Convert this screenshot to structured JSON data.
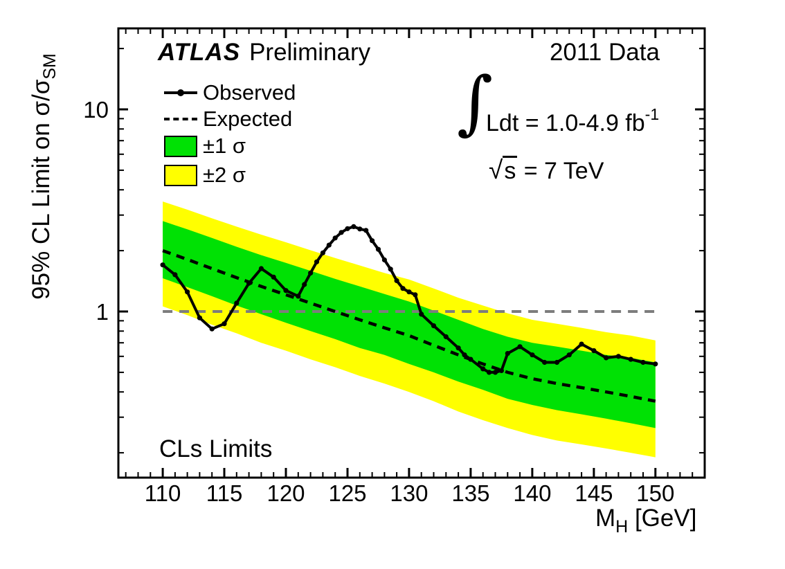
{
  "header": {
    "atlas": "ATLAS",
    "preliminary": "Preliminary",
    "right": "2011 Data"
  },
  "legend": {
    "observed": "Observed",
    "expected": "Expected",
    "one_sigma": "±1 σ",
    "two_sigma": "±2 σ"
  },
  "info": {
    "integral_symbol": "∫",
    "lumi_text": "Ldt = 1.0-4.9 fb",
    "lumi_exp": "-1",
    "sqrt_symbol": "√",
    "sqrt_arg": "s",
    "energy_text": " = 7 TeV"
  },
  "corner_label": "CLs Limits",
  "x_axis_title": {
    "main": "M",
    "sub": "H",
    "unit": " [GeV]"
  },
  "y_axis_title": {
    "main": "95% CL Limit on σ/σ",
    "sub": "SM"
  },
  "chart_data": {
    "type": "line",
    "title": "ATLAS Preliminary",
    "subtitle_right": "2011 Data",
    "annotations": [
      "∫ Ldt = 1.0-4.9 fb⁻¹",
      "√s = 7 TeV",
      "CLs Limits"
    ],
    "xlabel": "M_H [GeV]",
    "ylabel": "95% CL Limit on σ/σ_SM",
    "xlim": [
      106.4,
      154
    ],
    "ylog": true,
    "ylim": [
      0.151,
      25.2
    ],
    "legend_position": "top-left",
    "grid": false,
    "x_axis": {
      "major": [
        110,
        115,
        120,
        125,
        130,
        135,
        140,
        145,
        150
      ],
      "labels": [
        "110",
        "115",
        "120",
        "125",
        "130",
        "135",
        "140",
        "145",
        "150"
      ],
      "minor_range": [
        107,
        153
      ],
      "minor_step": 1
    },
    "y_axis": {
      "major": [
        1,
        10
      ],
      "labels": [
        "1",
        "10"
      ],
      "minor": [
        0.2,
        0.3,
        0.4,
        0.5,
        0.6,
        0.7,
        0.8,
        0.9,
        2,
        3,
        4,
        5,
        6,
        7,
        8,
        9,
        20
      ]
    },
    "colors": {
      "observed": "#000000",
      "expected": "#000000",
      "one_sigma": "#00e104",
      "two_sigma": "#ffff00",
      "reference": "#7d7d7d",
      "frame": "#000000"
    },
    "reference_line": {
      "y": 1,
      "x_range": [
        110,
        150
      ]
    },
    "observed": {
      "name": "Observed",
      "x": [
        110,
        111,
        112,
        113,
        114,
        115,
        116,
        117,
        118,
        119,
        120,
        121,
        121.5,
        122,
        122.5,
        123,
        123.5,
        124,
        124.5,
        125,
        125.5,
        126,
        126.5,
        127,
        127.5,
        128,
        128.5,
        129,
        129.5,
        130,
        130.5,
        131,
        132,
        133,
        134,
        134.5,
        135,
        136,
        136.5,
        137,
        137.5,
        138,
        139,
        140,
        141,
        142,
        143,
        144,
        145,
        146,
        147,
        148,
        149,
        150
      ],
      "y": [
        1.7,
        1.52,
        1.25,
        0.93,
        0.82,
        0.87,
        1.1,
        1.38,
        1.63,
        1.48,
        1.27,
        1.19,
        1.36,
        1.55,
        1.76,
        1.95,
        2.13,
        2.31,
        2.46,
        2.57,
        2.63,
        2.56,
        2.52,
        2.24,
        2.03,
        1.8,
        1.62,
        1.42,
        1.3,
        1.25,
        1.21,
        0.97,
        0.85,
        0.75,
        0.66,
        0.61,
        0.58,
        0.52,
        0.5,
        0.5,
        0.51,
        0.62,
        0.67,
        0.61,
        0.56,
        0.56,
        0.61,
        0.69,
        0.64,
        0.59,
        0.6,
        0.58,
        0.56,
        0.55
      ]
    },
    "expected": {
      "name": "Expected",
      "x": [
        110,
        112,
        114,
        116,
        118,
        120,
        122,
        124,
        126,
        128,
        130,
        132,
        134,
        136,
        138,
        140,
        142,
        144,
        146,
        148,
        150
      ],
      "y": [
        2.0,
        1.81,
        1.63,
        1.47,
        1.33,
        1.21,
        1.1,
        1.0,
        0.91,
        0.83,
        0.76,
        0.68,
        0.61,
        0.55,
        0.5,
        0.465,
        0.44,
        0.42,
        0.4,
        0.38,
        0.36
      ]
    },
    "bands": {
      "one_sigma": {
        "name": "±1 σ",
        "hi": [
          2.8,
          2.55,
          2.31,
          2.09,
          1.9,
          1.74,
          1.59,
          1.45,
          1.33,
          1.22,
          1.12,
          1.01,
          0.91,
          0.82,
          0.75,
          0.7,
          0.67,
          0.64,
          0.61,
          0.59,
          0.56
        ],
        "lo": [
          1.46,
          1.32,
          1.19,
          1.07,
          0.97,
          0.88,
          0.8,
          0.73,
          0.66,
          0.61,
          0.55,
          0.5,
          0.45,
          0.41,
          0.37,
          0.345,
          0.325,
          0.31,
          0.295,
          0.28,
          0.265
        ]
      },
      "two_sigma": {
        "name": "±2 σ",
        "hi": [
          3.5,
          3.19,
          2.89,
          2.63,
          2.4,
          2.2,
          2.01,
          1.84,
          1.69,
          1.55,
          1.44,
          1.3,
          1.17,
          1.07,
          0.98,
          0.91,
          0.87,
          0.83,
          0.79,
          0.76,
          0.72
        ],
        "lo": [
          1.06,
          0.96,
          0.86,
          0.78,
          0.7,
          0.64,
          0.58,
          0.53,
          0.48,
          0.44,
          0.4,
          0.36,
          0.32,
          0.29,
          0.265,
          0.245,
          0.23,
          0.22,
          0.21,
          0.2,
          0.19
        ]
      }
    }
  }
}
